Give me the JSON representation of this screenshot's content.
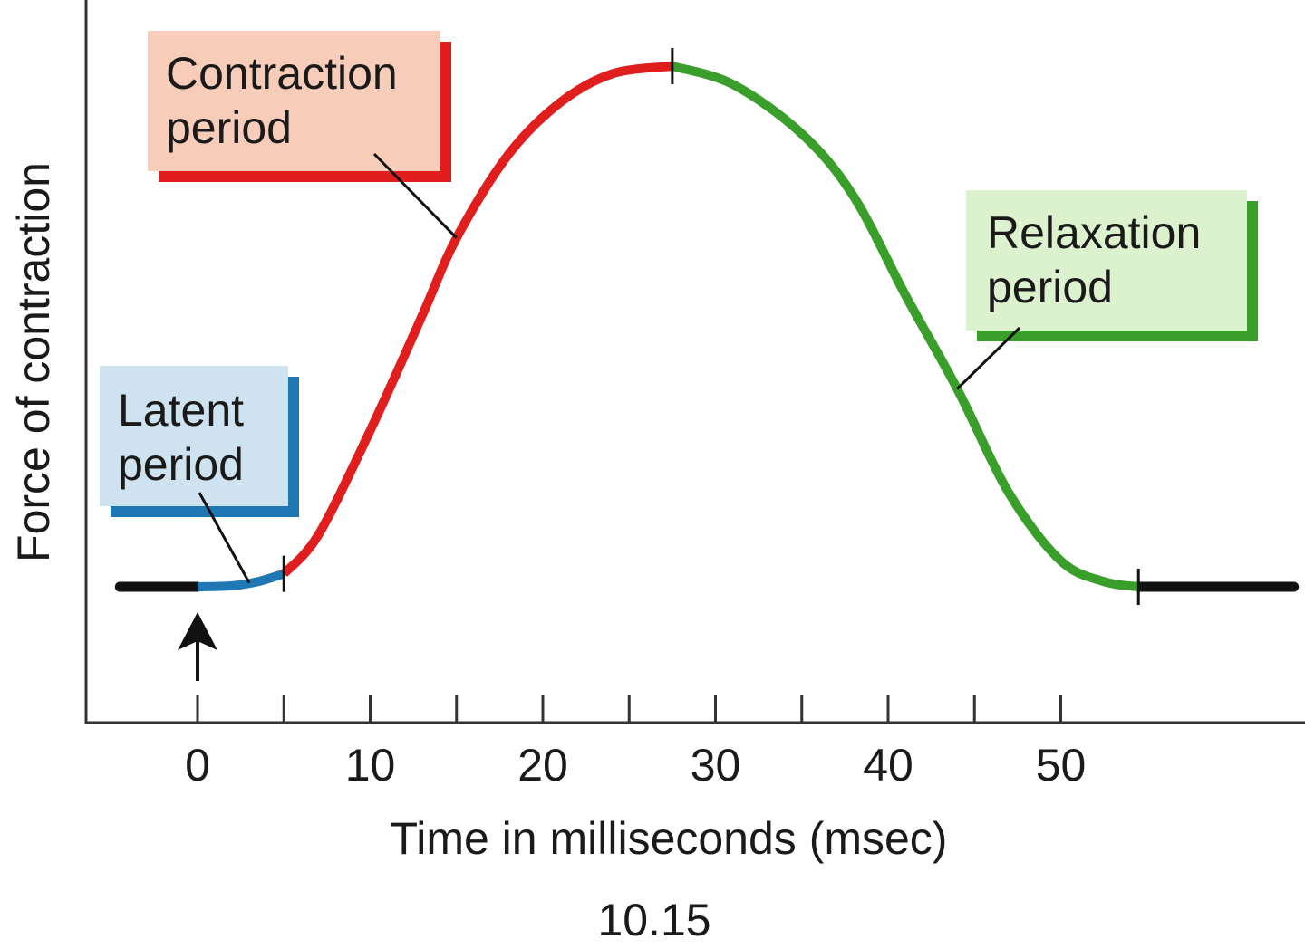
{
  "chart_data": {
    "type": "line",
    "title": "",
    "xlabel": "Time in milliseconds (msec)",
    "ylabel": "Force of contraction",
    "figure_number": "10.15",
    "xlim": [
      -5,
      64
    ],
    "x_ticks": [
      0,
      10,
      20,
      30,
      40,
      50
    ],
    "x_minor_ticks": [
      5,
      15,
      25,
      35,
      45
    ],
    "y_tick_labels": false,
    "grid": false,
    "legend": "none",
    "baseline_before": {
      "x": [
        -4.5,
        0
      ],
      "color": "#111111"
    },
    "baseline_after": {
      "x": [
        54.5,
        63.5
      ],
      "color": "#111111"
    },
    "stimulus_marker": {
      "x": 0
    },
    "phases": [
      {
        "name": "Latent period",
        "label_lines": [
          "Latent",
          "period"
        ],
        "x_start": 0,
        "x_end": 5,
        "color": "#1f78b4",
        "box_fill": "#cfe2f0",
        "points": [
          [
            0,
            0
          ],
          [
            2,
            0.002
          ],
          [
            3.5,
            0.01
          ],
          [
            5,
            0.025
          ]
        ]
      },
      {
        "name": "Contraction period",
        "label_lines": [
          "Contraction",
          "period"
        ],
        "x_start": 5,
        "x_end": 27.5,
        "color": "#e01e1e",
        "box_fill": "#f7cdb9",
        "points": [
          [
            5,
            0.025
          ],
          [
            7,
            0.1
          ],
          [
            10,
            0.3
          ],
          [
            13,
            0.52
          ],
          [
            15,
            0.67
          ],
          [
            18,
            0.83
          ],
          [
            21,
            0.93
          ],
          [
            24,
            0.985
          ],
          [
            27.5,
            1.0
          ]
        ]
      },
      {
        "name": "Relaxation period",
        "label_lines": [
          "Relaxation",
          "period"
        ],
        "x_start": 27.5,
        "x_end": 54.5,
        "color": "#3a9e2a",
        "box_fill": "#dcf2cf",
        "points": [
          [
            27.5,
            1.0
          ],
          [
            31,
            0.965
          ],
          [
            35,
            0.87
          ],
          [
            38,
            0.75
          ],
          [
            41,
            0.56
          ],
          [
            44,
            0.38
          ],
          [
            47,
            0.18
          ],
          [
            50,
            0.05
          ],
          [
            52.5,
            0.01
          ],
          [
            54.5,
            0.0
          ]
        ]
      }
    ]
  }
}
